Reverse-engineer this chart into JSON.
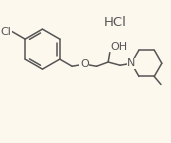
{
  "bg_color": "#fdf8ee",
  "line_color": "#555555",
  "line_width": 1.1,
  "font_size": 7.0,
  "hcl_label": "HCl",
  "cl_label": "Cl",
  "o_label": "O",
  "oh_label": "OH",
  "n_label": "N"
}
